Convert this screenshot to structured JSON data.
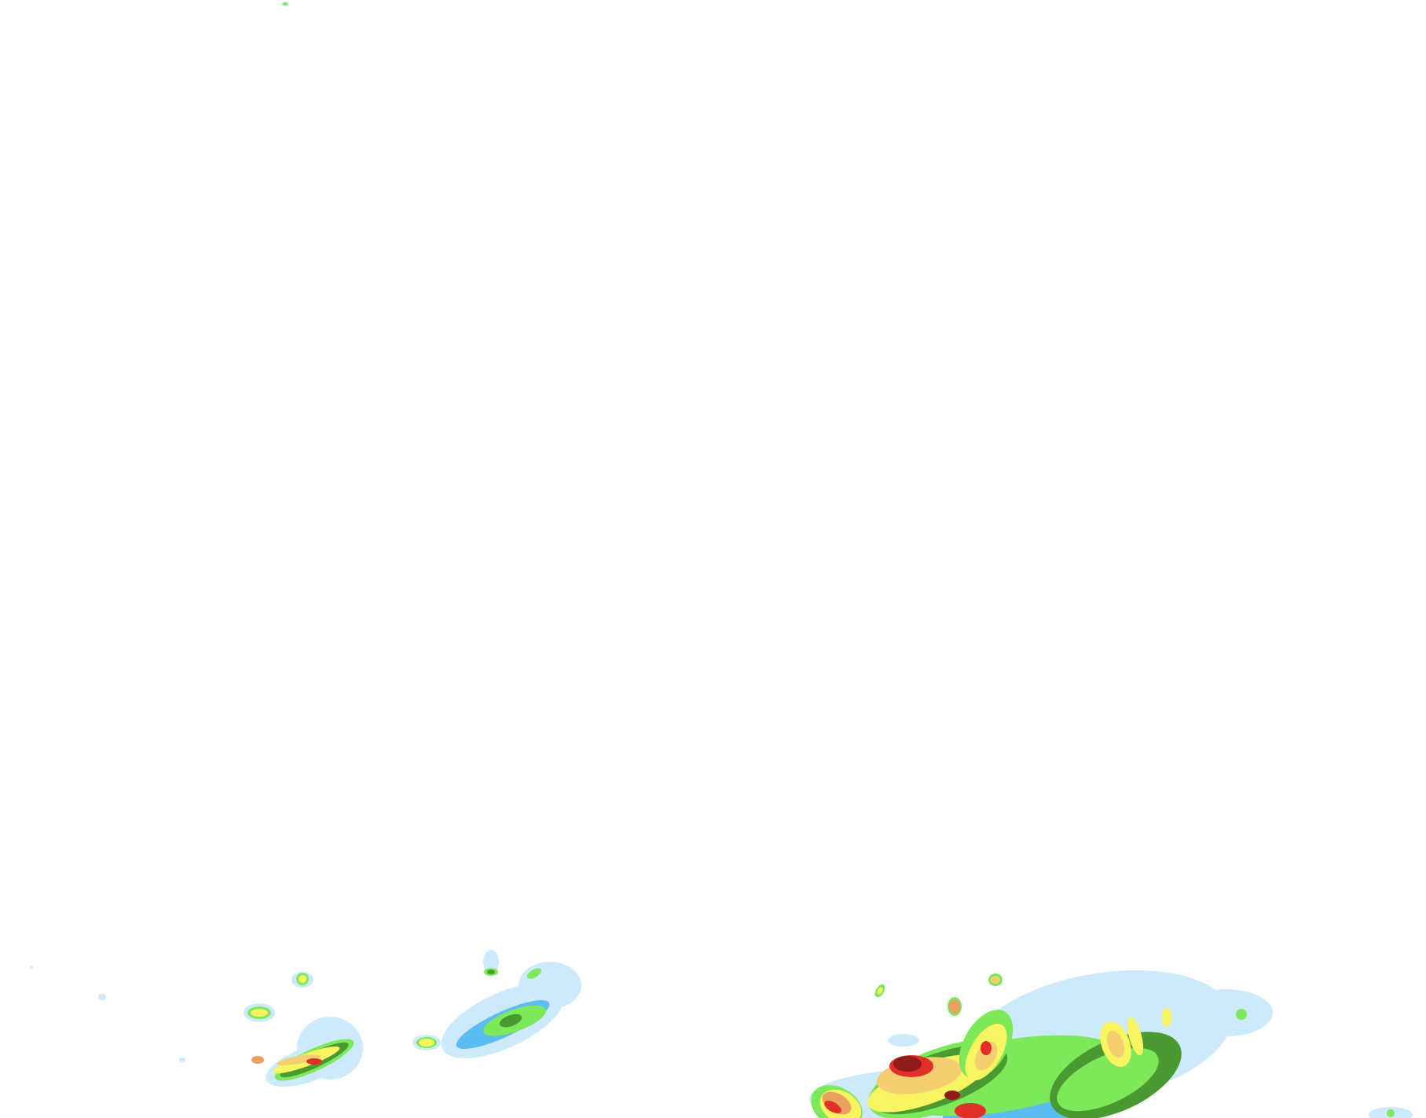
{
  "map": {
    "layer": "precipitation-radar",
    "background": "#ffffff",
    "intensity_palette": [
      "#cdeafc",
      "#5bbcf0",
      "#7ce85a",
      "#4a9a32",
      "#f8f560",
      "#f3cf72",
      "#e9a060",
      "#e03028",
      "#921c1a"
    ]
  }
}
